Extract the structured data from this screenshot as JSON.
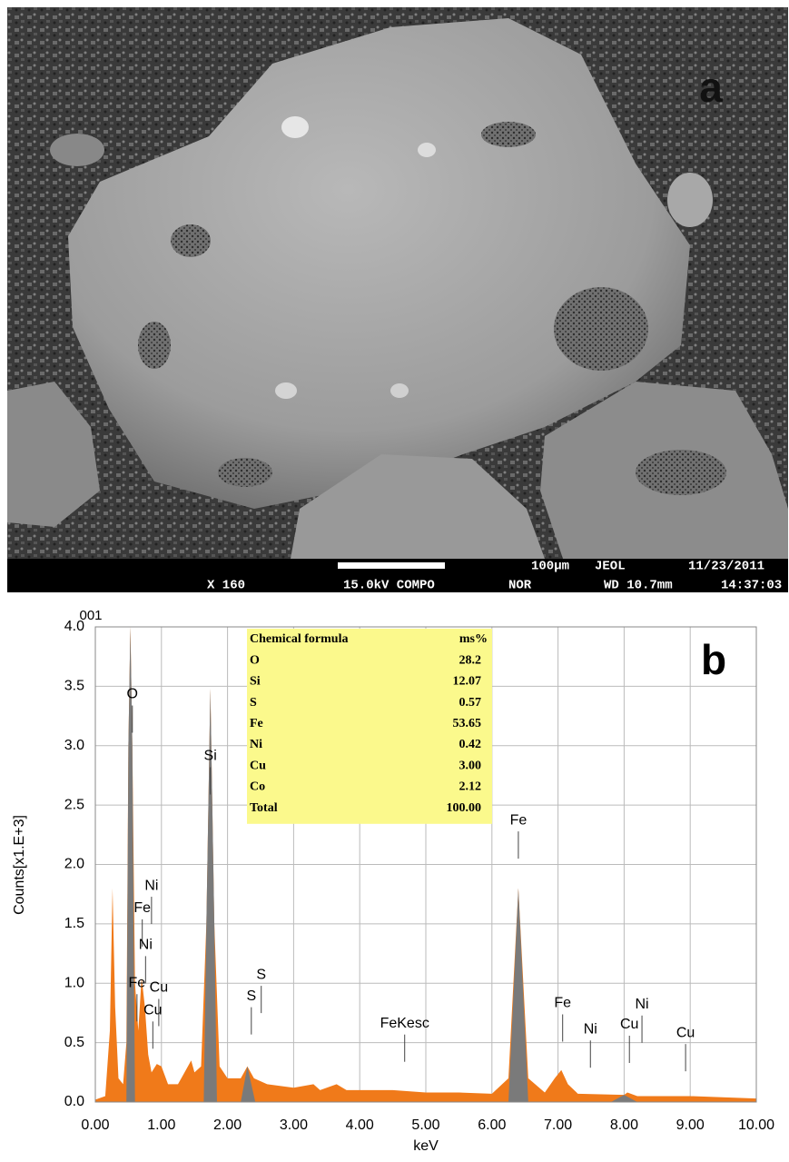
{
  "image_panel": {
    "label": "a",
    "scale_bar": "100μm",
    "info": [
      "JEOL",
      "11/23/2011",
      "X 160",
      "15.0kV COMPO",
      "NOR",
      "WD 10.7mm",
      "14:37:03"
    ]
  },
  "chart_data": {
    "type": "spectrum",
    "label": "b",
    "corner_text": "001",
    "ylabel": "Counts[x1.E+3]",
    "xlabel": "keV",
    "xlim": [
      0,
      10
    ],
    "ylim": [
      0,
      4
    ],
    "xticks": [
      {
        "value": 0,
        "label": "0.00"
      },
      {
        "value": 1,
        "label": "1.00"
      },
      {
        "value": 2,
        "label": "2.00"
      },
      {
        "value": 3,
        "label": "3.00"
      },
      {
        "value": 4,
        "label": "4.00"
      },
      {
        "value": 5,
        "label": "5.00"
      },
      {
        "value": 6,
        "label": "6.00"
      },
      {
        "value": 7,
        "label": "7.00"
      },
      {
        "value": 8,
        "label": "8.00"
      },
      {
        "value": 9,
        "label": "9.00"
      },
      {
        "value": 10,
        "label": "10.00"
      }
    ],
    "yticks": [
      {
        "value": 0,
        "label": "0.0"
      },
      0.5,
      {
        "value": 1,
        "label": "1.0"
      },
      1.5,
      {
        "value": 2,
        "label": "2.0"
      },
      2.5,
      {
        "value": 3,
        "label": "3.0"
      },
      3.5,
      {
        "value": 4,
        "label": "4.0"
      }
    ],
    "grid": true,
    "series": [
      {
        "color": "#f07a1a",
        "x": [
          0,
          0.15,
          0.22,
          0.26,
          0.3,
          0.35,
          0.42,
          0.47,
          0.5,
          0.53,
          0.56,
          0.6,
          0.65,
          0.7,
          0.75,
          0.8,
          0.85,
          0.93,
          1,
          1.1,
          1.25,
          1.35,
          1.45,
          1.5,
          1.6,
          1.68,
          1.74,
          1.8,
          1.88,
          2,
          2.2,
          2.3,
          2.4,
          2.6,
          3,
          3.3,
          3.4,
          3.65,
          3.8,
          4.5,
          5,
          5.5,
          6,
          6.25,
          6.4,
          6.55,
          6.8,
          6.95,
          7.05,
          7.15,
          7.3,
          8,
          8.05,
          8.2,
          9,
          10
        ],
        "values": [
          0.02,
          0.05,
          0.6,
          1.8,
          0.8,
          0.2,
          0.15,
          0.5,
          3,
          4,
          3,
          1,
          0.6,
          1.05,
          0.8,
          0.4,
          0.25,
          0.32,
          0.3,
          0.15,
          0.15,
          0.25,
          0.35,
          0.25,
          0.3,
          1.5,
          3.48,
          1.5,
          0.3,
          0.2,
          0.2,
          0.3,
          0.2,
          0.15,
          0.12,
          0.15,
          0.1,
          0.15,
          0.1,
          0.1,
          0.08,
          0.08,
          0.07,
          0.2,
          1.8,
          0.2,
          0.08,
          0.2,
          0.27,
          0.15,
          0.07,
          0.06,
          0.08,
          0.05,
          0.05,
          0.03
        ]
      },
      {
        "color": "#7a7a7a",
        "x": [
          0.47,
          0.5,
          0.53,
          0.56,
          0.6,
          0.6,
          1.64,
          1.68,
          1.74,
          1.8,
          1.84,
          1.84,
          2.2,
          2.3,
          2.42,
          2.42,
          6.25,
          6.4,
          6.55,
          6.55,
          7.8,
          8,
          8.2
        ],
        "values": [
          0,
          3,
          4,
          3,
          0,
          null,
          0,
          1.5,
          3.48,
          1.5,
          0,
          null,
          0,
          0.3,
          0,
          null,
          0,
          1.8,
          0,
          null,
          0,
          0.06,
          0
        ]
      }
    ],
    "peak_labels": [
      {
        "text": "O",
        "x": 0.56,
        "y": 3.43
      },
      {
        "text": "Si",
        "x": 1.74,
        "y": 2.91
      },
      {
        "text": "Ni",
        "x": 0.85,
        "y": 1.82
      },
      {
        "text": "Fe",
        "x": 0.71,
        "y": 1.63
      },
      {
        "text": "Ni",
        "x": 0.76,
        "y": 1.32
      },
      {
        "text": "Fe",
        "x": 0.63,
        "y": 1.0
      },
      {
        "text": "Cu",
        "x": 0.96,
        "y": 0.96
      },
      {
        "text": "Cu",
        "x": 0.87,
        "y": 0.77
      },
      {
        "text": "S",
        "x": 2.36,
        "y": 0.89
      },
      {
        "text": "S",
        "x": 2.51,
        "y": 1.07
      },
      {
        "text": "FeKesc",
        "x": 4.68,
        "y": 0.66
      },
      {
        "text": "Fe",
        "x": 6.4,
        "y": 2.37
      },
      {
        "text": "Fe",
        "x": 7.07,
        "y": 0.83
      },
      {
        "text": "Ni",
        "x": 7.49,
        "y": 0.61
      },
      {
        "text": "Cu",
        "x": 8.08,
        "y": 0.65
      },
      {
        "text": "Ni",
        "x": 8.27,
        "y": 0.82
      },
      {
        "text": "Cu",
        "x": 8.93,
        "y": 0.58
      }
    ],
    "table": {
      "header": [
        "Chemical formula",
        "ms%"
      ],
      "rows": [
        [
          "O",
          "28.2"
        ],
        [
          "Si",
          "12.07"
        ],
        [
          "S",
          "0.57"
        ],
        [
          "Fe",
          "53.65"
        ],
        [
          "Ni",
          "0.42"
        ],
        [
          "Cu",
          "3.00"
        ],
        [
          "Co",
          "2.12"
        ],
        [
          "Total",
          "100.00"
        ]
      ]
    }
  }
}
